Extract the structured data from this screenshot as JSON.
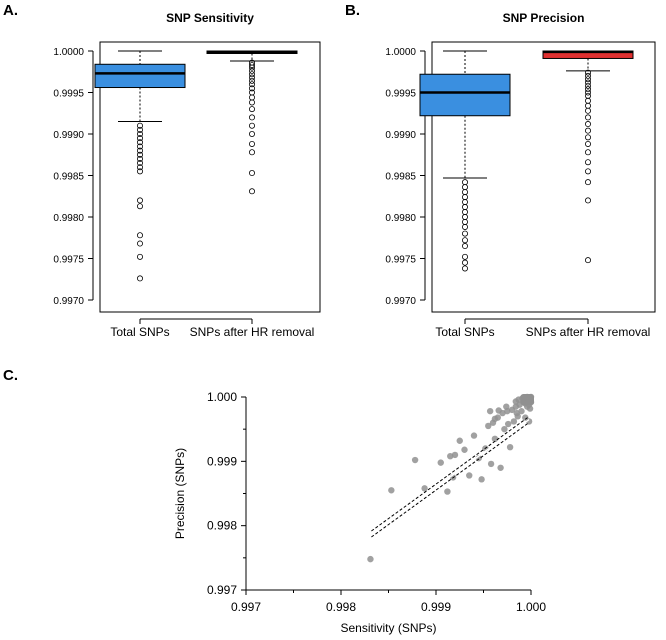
{
  "panel_labels": {
    "a": "A.",
    "b": "B.",
    "c": "C."
  },
  "chart_data": [
    {
      "type": "boxplot",
      "panel": "A",
      "title": "SNP Sensitivity",
      "ylim": [
        0.997,
        1.0
      ],
      "yticks": [
        0.997,
        0.9975,
        0.998,
        0.9985,
        0.999,
        0.9995,
        1.0
      ],
      "ytick_labels": [
        "0.9970",
        "0.9975",
        "0.9980",
        "0.9985",
        "0.9990",
        "0.9995",
        "1.0000"
      ],
      "categories": [
        "Total SNPs",
        "SNPs after HR removal"
      ],
      "boxes": [
        {
          "name": "Total SNPs",
          "color": "#3a8fe0",
          "whisker_low": 0.99915,
          "q1": 0.99956,
          "median": 0.99973,
          "q3": 0.99984,
          "whisker_high": 1.0,
          "outliers": [
            0.9991,
            0.99905,
            0.999,
            0.99895,
            0.9989,
            0.99885,
            0.9988,
            0.99875,
            0.9987,
            0.99865,
            0.9986,
            0.99855,
            0.9982,
            0.99813,
            0.99778,
            0.99768,
            0.99752,
            0.99726
          ]
        },
        {
          "name": "SNPs after HR removal",
          "color": "#e03030",
          "whisker_low": 0.99988,
          "q1": 0.99997,
          "median": 0.99999,
          "q3": 1.0,
          "whisker_high": 1.0,
          "outliers": [
            0.99986,
            0.99983,
            0.9998,
            0.99976,
            0.99972,
            0.99968,
            0.99964,
            0.9996,
            0.99955,
            0.9995,
            0.99944,
            0.99938,
            0.9993,
            0.9992,
            0.9991,
            0.999,
            0.99888,
            0.99878,
            0.99853,
            0.99831
          ]
        }
      ]
    },
    {
      "type": "boxplot",
      "panel": "B",
      "title": "SNP Precision",
      "ylim": [
        0.997,
        1.0
      ],
      "yticks": [
        0.997,
        0.9975,
        0.998,
        0.9985,
        0.999,
        0.9995,
        1.0
      ],
      "ytick_labels": [
        "0.9970",
        "0.9975",
        "0.9980",
        "0.9985",
        "0.9990",
        "0.9995",
        "1.0000"
      ],
      "categories": [
        "Total SNPs",
        "SNPs after HR removal"
      ],
      "boxes": [
        {
          "name": "Total SNPs",
          "color": "#3a8fe0",
          "whisker_low": 0.99847,
          "q1": 0.99922,
          "median": 0.9995,
          "q3": 0.99972,
          "whisker_high": 1.0,
          "outliers": [
            0.99842,
            0.99836,
            0.9983,
            0.99824,
            0.99818,
            0.99812,
            0.99806,
            0.998,
            0.99794,
            0.99788,
            0.9978,
            0.99772,
            0.99765,
            0.99752,
            0.99745,
            0.99738
          ]
        },
        {
          "name": "SNPs after HR removal",
          "color": "#e03030",
          "whisker_low": 0.99976,
          "q1": 0.99991,
          "median": 0.99999,
          "q3": 1.0,
          "whisker_high": 1.0,
          "outliers": [
            0.99974,
            0.9997,
            0.99966,
            0.99962,
            0.99958,
            0.99954,
            0.9995,
            0.99946,
            0.9994,
            0.99934,
            0.99928,
            0.9992,
            0.99912,
            0.99904,
            0.99896,
            0.99888,
            0.99878,
            0.99866,
            0.99855,
            0.99842,
            0.9982,
            0.99748
          ]
        }
      ]
    },
    {
      "type": "scatter",
      "panel": "C",
      "xlabel": "Sensitivity (SNPs)",
      "ylabel": "Precision (SNPs)",
      "xlim": [
        0.997,
        1.0
      ],
      "ylim": [
        0.997,
        1.0
      ],
      "xticks": [
        0.997,
        0.998,
        0.999,
        1.0
      ],
      "xtick_labels": [
        "0.997",
        "0.998",
        "0.999",
        "1.000"
      ],
      "yticks": [
        0.997,
        0.998,
        0.999,
        1.0
      ],
      "ytick_labels": [
        "0.997",
        "0.998",
        "0.999",
        "1.000"
      ],
      "point_color": "#909090",
      "regression": {
        "x": [
          0.99832,
          0.99998
        ],
        "y": [
          0.99787,
          0.99965
        ]
      },
      "points": [
        [
          0.99831,
          0.99748
        ],
        [
          0.99853,
          0.99855
        ],
        [
          0.99878,
          0.99902
        ],
        [
          0.99888,
          0.99858
        ],
        [
          0.99905,
          0.99898
        ],
        [
          0.99915,
          0.99908
        ],
        [
          0.99912,
          0.99853
        ],
        [
          0.99918,
          0.99875
        ],
        [
          0.9992,
          0.9991
        ],
        [
          0.99925,
          0.99932
        ],
        [
          0.9993,
          0.99918
        ],
        [
          0.99935,
          0.99878
        ],
        [
          0.9994,
          0.9994
        ],
        [
          0.99945,
          0.99905
        ],
        [
          0.99948,
          0.99872
        ],
        [
          0.99952,
          0.9992
        ],
        [
          0.99955,
          0.99955
        ],
        [
          0.99958,
          0.99896
        ],
        [
          0.9996,
          0.9996
        ],
        [
          0.99962,
          0.99935
        ],
        [
          0.99965,
          0.99968
        ],
        [
          0.99968,
          0.9989
        ],
        [
          0.9997,
          0.99975
        ],
        [
          0.99972,
          0.9995
        ],
        [
          0.99975,
          0.99978
        ],
        [
          0.99978,
          0.99922
        ],
        [
          0.9998,
          0.9998
        ],
        [
          0.99982,
          0.99962
        ],
        [
          0.99984,
          0.99985
        ],
        [
          0.99986,
          0.9997
        ],
        [
          0.99988,
          0.99988
        ],
        [
          0.9999,
          0.99978
        ],
        [
          0.99992,
          0.99992
        ],
        [
          0.99994,
          0.9999
        ],
        [
          0.99995,
          0.99996
        ],
        [
          0.99996,
          0.99985
        ],
        [
          0.99997,
          0.99998
        ],
        [
          0.99998,
          0.99994
        ],
        [
          0.99999,
          0.99999
        ],
        [
          0.99999,
          0.99982
        ],
        [
          1.0,
          1.0
        ],
        [
          1.0,
          0.99992
        ],
        [
          0.99996,
          1.0
        ],
        [
          0.99993,
          0.99999
        ],
        [
          0.99999,
          0.99996
        ],
        [
          0.99987,
          0.99996
        ],
        [
          0.99984,
          0.99993
        ],
        [
          0.99991,
          0.99998
        ],
        [
          0.99998,
          0.99988
        ],
        [
          0.99985,
          0.99975
        ],
        [
          0.99974,
          0.99985
        ],
        [
          0.99966,
          0.99979
        ],
        [
          0.99962,
          0.99966
        ],
        [
          0.99957,
          0.99978
        ],
        [
          0.99998,
          0.99962
        ],
        [
          0.99994,
          0.99968
        ],
        [
          0.99976,
          0.99958
        ]
      ]
    }
  ]
}
